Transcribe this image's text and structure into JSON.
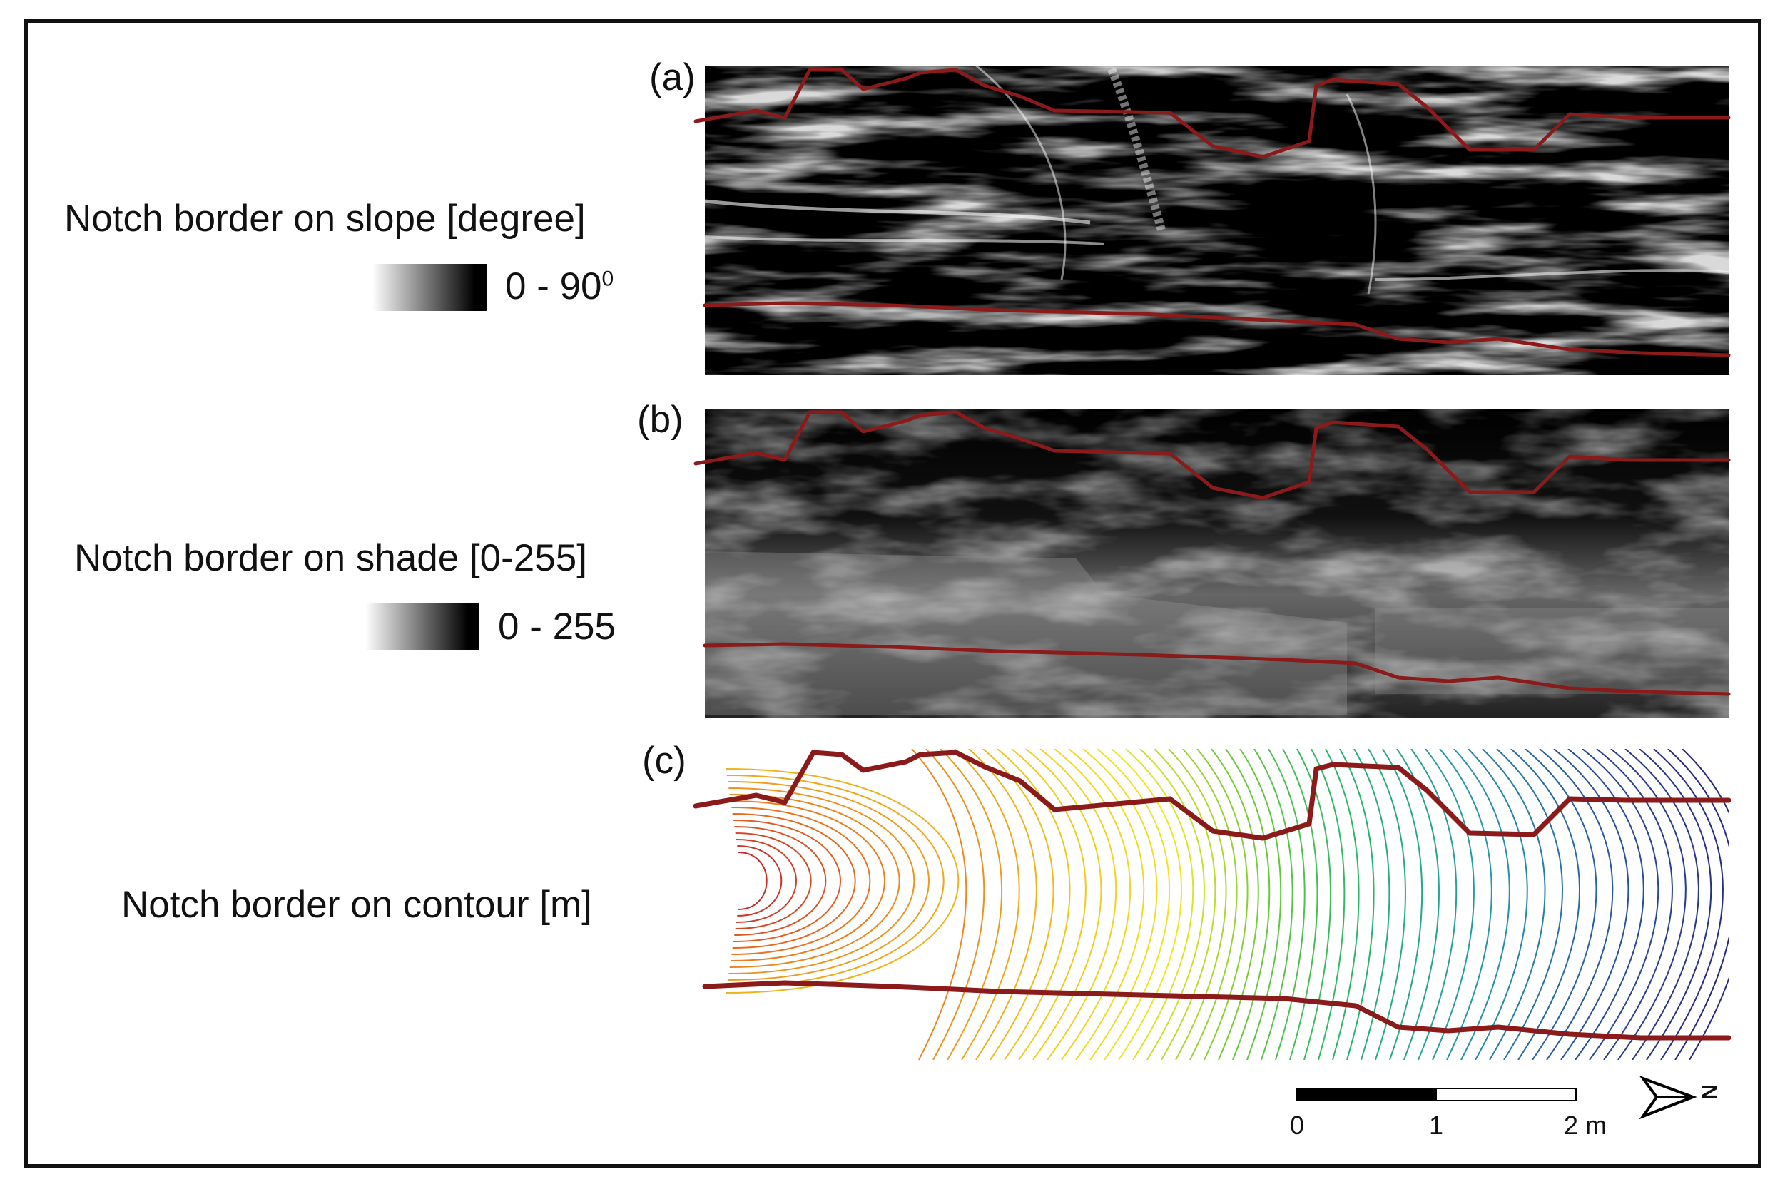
{
  "legend": {
    "slope_label": "Notch border on slope [degree]",
    "slope_range": "0 - 90",
    "slope_range_sup": "0",
    "shade_label": "Notch border on shade [0-255]",
    "shade_range": "0 - 255",
    "contour_label": "Notch border on contour [m]"
  },
  "panels": {
    "a": "(a)",
    "b": "(b)",
    "c": "(c)"
  },
  "scale": {
    "t0": "0",
    "t1": "1",
    "t2": "2 m"
  },
  "north": {
    "letter": "N"
  },
  "colors": {
    "border_line": "#8b1a1a",
    "frame": "#111111"
  }
}
